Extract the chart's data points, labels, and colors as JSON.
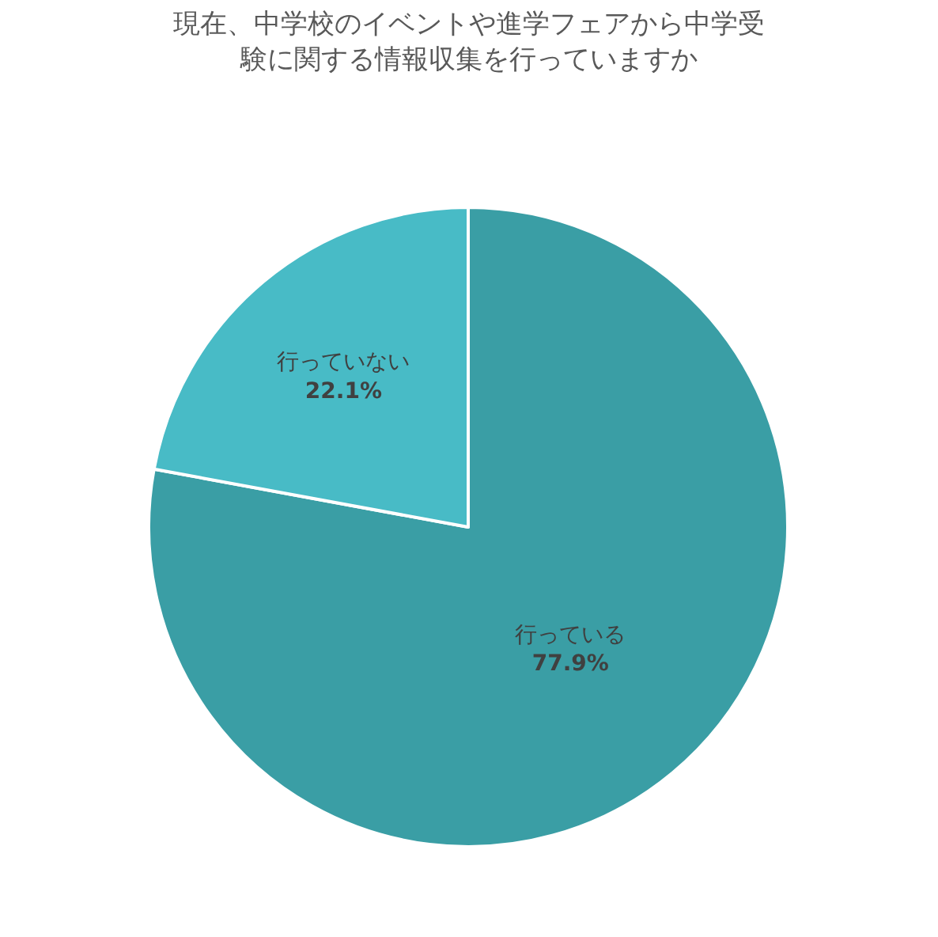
{
  "chart_data": {
    "type": "pie",
    "title": "現在、中学校のイベントや進学フェアから中学受験に関する情報収集を行っていますか",
    "categories": [
      "行っている",
      "行っていない"
    ],
    "values": [
      77.9,
      22.1
    ],
    "value_labels": [
      "77.9%",
      "22.1%"
    ],
    "colors": [
      "#3a9ea5",
      "#48bbc6"
    ],
    "legend": false
  }
}
